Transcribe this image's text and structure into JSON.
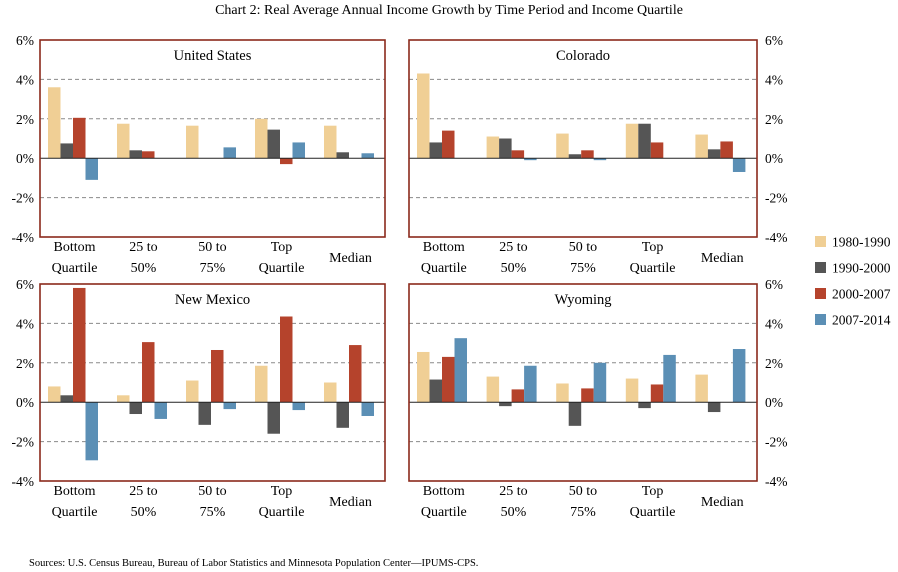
{
  "chart_data": {
    "type": "bar",
    "title": "Chart 2: Real Average Annual Income Growth by Time Period and Income Quartile",
    "source": "Sources: U.S. Census Bureau, Bureau of Labor Statistics and Minnesota Population Center—IPUMS-CPS.",
    "categories": [
      [
        "Bottom",
        "Quartile"
      ],
      [
        "25 to",
        "50%"
      ],
      [
        "50 to",
        "75%"
      ],
      [
        "Top",
        "Quartile"
      ],
      [
        "Median"
      ]
    ],
    "series_names": [
      "1980-1990",
      "1990-2000",
      "2000-2007",
      "2007-2014"
    ],
    "colors": [
      "#F0CF95",
      "#555555",
      "#B5432C",
      "#5B8FB5"
    ],
    "ylim": [
      -4,
      6
    ],
    "yticks": [
      6,
      4,
      2,
      0,
      -2,
      -4
    ],
    "ytick_labels": [
      "6%",
      "4%",
      "2%",
      "0%",
      "-2%",
      "-4%"
    ],
    "grid": "dashed horizontal",
    "legend_position": "right",
    "panels": [
      {
        "title": "United States",
        "series": [
          {
            "name": "1980-1990",
            "values": [
              3.6,
              1.75,
              1.65,
              2.0,
              1.65
            ]
          },
          {
            "name": "1990-2000",
            "values": [
              0.75,
              0.4,
              0.0,
              1.45,
              0.3
            ]
          },
          {
            "name": "2000-2007",
            "values": [
              2.05,
              0.35,
              0.0,
              -0.3,
              0.0
            ]
          },
          {
            "name": "2007-2014",
            "values": [
              -1.1,
              0.0,
              0.55,
              0.8,
              0.25
            ]
          }
        ]
      },
      {
        "title": "Colorado",
        "series": [
          {
            "name": "1980-1990",
            "values": [
              4.3,
              1.1,
              1.25,
              1.75,
              1.2
            ]
          },
          {
            "name": "1990-2000",
            "values": [
              0.8,
              1.0,
              0.2,
              1.75,
              0.45
            ]
          },
          {
            "name": "2000-2007",
            "values": [
              1.4,
              0.4,
              0.4,
              0.8,
              0.85
            ]
          },
          {
            "name": "2007-2014",
            "values": [
              0.0,
              -0.1,
              -0.1,
              0.0,
              -0.7
            ]
          }
        ]
      },
      {
        "title": "New Mexico",
        "series": [
          {
            "name": "1980-1990",
            "values": [
              0.8,
              0.35,
              1.1,
              1.85,
              1.0
            ]
          },
          {
            "name": "1990-2000",
            "values": [
              0.35,
              -0.6,
              -1.15,
              -1.6,
              -1.3
            ]
          },
          {
            "name": "2000-2007",
            "values": [
              5.8,
              3.05,
              2.65,
              4.35,
              2.9
            ]
          },
          {
            "name": "2007-2014",
            "values": [
              -2.95,
              -0.85,
              -0.35,
              -0.4,
              -0.7
            ]
          }
        ]
      },
      {
        "title": "Wyoming",
        "series": [
          {
            "name": "1980-1990",
            "values": [
              2.55,
              1.3,
              0.95,
              1.2,
              1.4
            ]
          },
          {
            "name": "1990-2000",
            "values": [
              1.15,
              -0.2,
              -1.2,
              -0.3,
              -0.5
            ]
          },
          {
            "name": "2000-2007",
            "values": [
              2.3,
              0.65,
              0.7,
              0.9,
              0.0
            ]
          },
          {
            "name": "2007-2014",
            "values": [
              3.25,
              1.85,
              2.0,
              2.4,
              2.7
            ]
          }
        ]
      }
    ]
  }
}
